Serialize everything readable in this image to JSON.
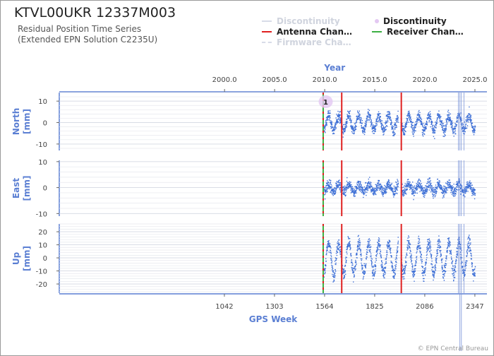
{
  "header": {
    "title": "KTVL00UKR 12337M003",
    "subtitle_line1": "Residual Position Time Series",
    "subtitle_line2": "(Extended EPN Solution C2235U)"
  },
  "legend": {
    "items": [
      {
        "label": "Discontinuity",
        "style": "line",
        "color": "#d8dce8",
        "faded": true
      },
      {
        "label": "Discontinuity",
        "style": "dot",
        "color": "#e3c8f2",
        "faded": false
      },
      {
        "label": "Antenna Chan…",
        "style": "line",
        "color": "#e02020",
        "faded": false
      },
      {
        "label": "Receiver Chan…",
        "style": "line",
        "color": "#3cb043",
        "faded": false
      },
      {
        "label": "Firmware Cha…",
        "style": "dashed",
        "color": "#d8dce8",
        "faded": true
      }
    ]
  },
  "footer": "© EPN Central Bureau",
  "colors": {
    "series": "#3d6fd6",
    "axis": "#5b7fd3",
    "antenna": "#e02020",
    "receiver": "#3cb043",
    "discontinuity_marker": "#e3c8f2"
  },
  "chart_data": {
    "type": "scatter",
    "top_axis": {
      "label": "Year",
      "ticks": [
        "2000.0",
        "2005.0",
        "2010.0",
        "2015.0",
        "2020.0",
        "2025.0"
      ],
      "tick_values": [
        2000.0,
        2005.0,
        2010.0,
        2015.0,
        2020.0,
        2025.0
      ]
    },
    "bottom_axis": {
      "label": "GPS Week",
      "ticks": [
        "1042",
        "1303",
        "1564",
        "1825",
        "2086",
        "2347"
      ],
      "tick_values": [
        1042,
        1303,
        1564,
        1825,
        2086,
        2347
      ]
    },
    "x_range": [
      1983.5,
      2026.2
    ],
    "data_start": 2009.9,
    "data_end": 2025.0,
    "receiver_change": 2009.85,
    "antenna_changes": [
      2011.7,
      2017.65
    ],
    "other_discontinuities": [
      2023.35,
      2023.5,
      2023.65,
      2023.9
    ],
    "discontinuity_label": "1",
    "discontinuity_label_at": 2010.1,
    "panels": [
      {
        "name": "North",
        "ylabel": "North\n[mm]",
        "ticks": [
          "10",
          "0",
          "-10"
        ],
        "tick_values": [
          10,
          0,
          -10
        ],
        "ylim": [
          -13,
          14
        ],
        "amplitude": 3.5,
        "noise": 2.2
      },
      {
        "name": "East",
        "ylabel": "East\n[mm]",
        "ticks": [
          "10",
          "0",
          "-10"
        ],
        "tick_values": [
          10,
          0,
          -10
        ],
        "ylim": [
          -11,
          10.5
        ],
        "amplitude": 1.5,
        "noise": 1.8
      },
      {
        "name": "Up",
        "ylabel": "Up\n[mm]",
        "ticks": [
          "20",
          "10",
          "0",
          "-10",
          "-20"
        ],
        "tick_values": [
          20,
          10,
          0,
          -10,
          -20
        ],
        "ylim": [
          -27,
          26
        ],
        "amplitude": 12,
        "noise": 4.5
      }
    ]
  }
}
